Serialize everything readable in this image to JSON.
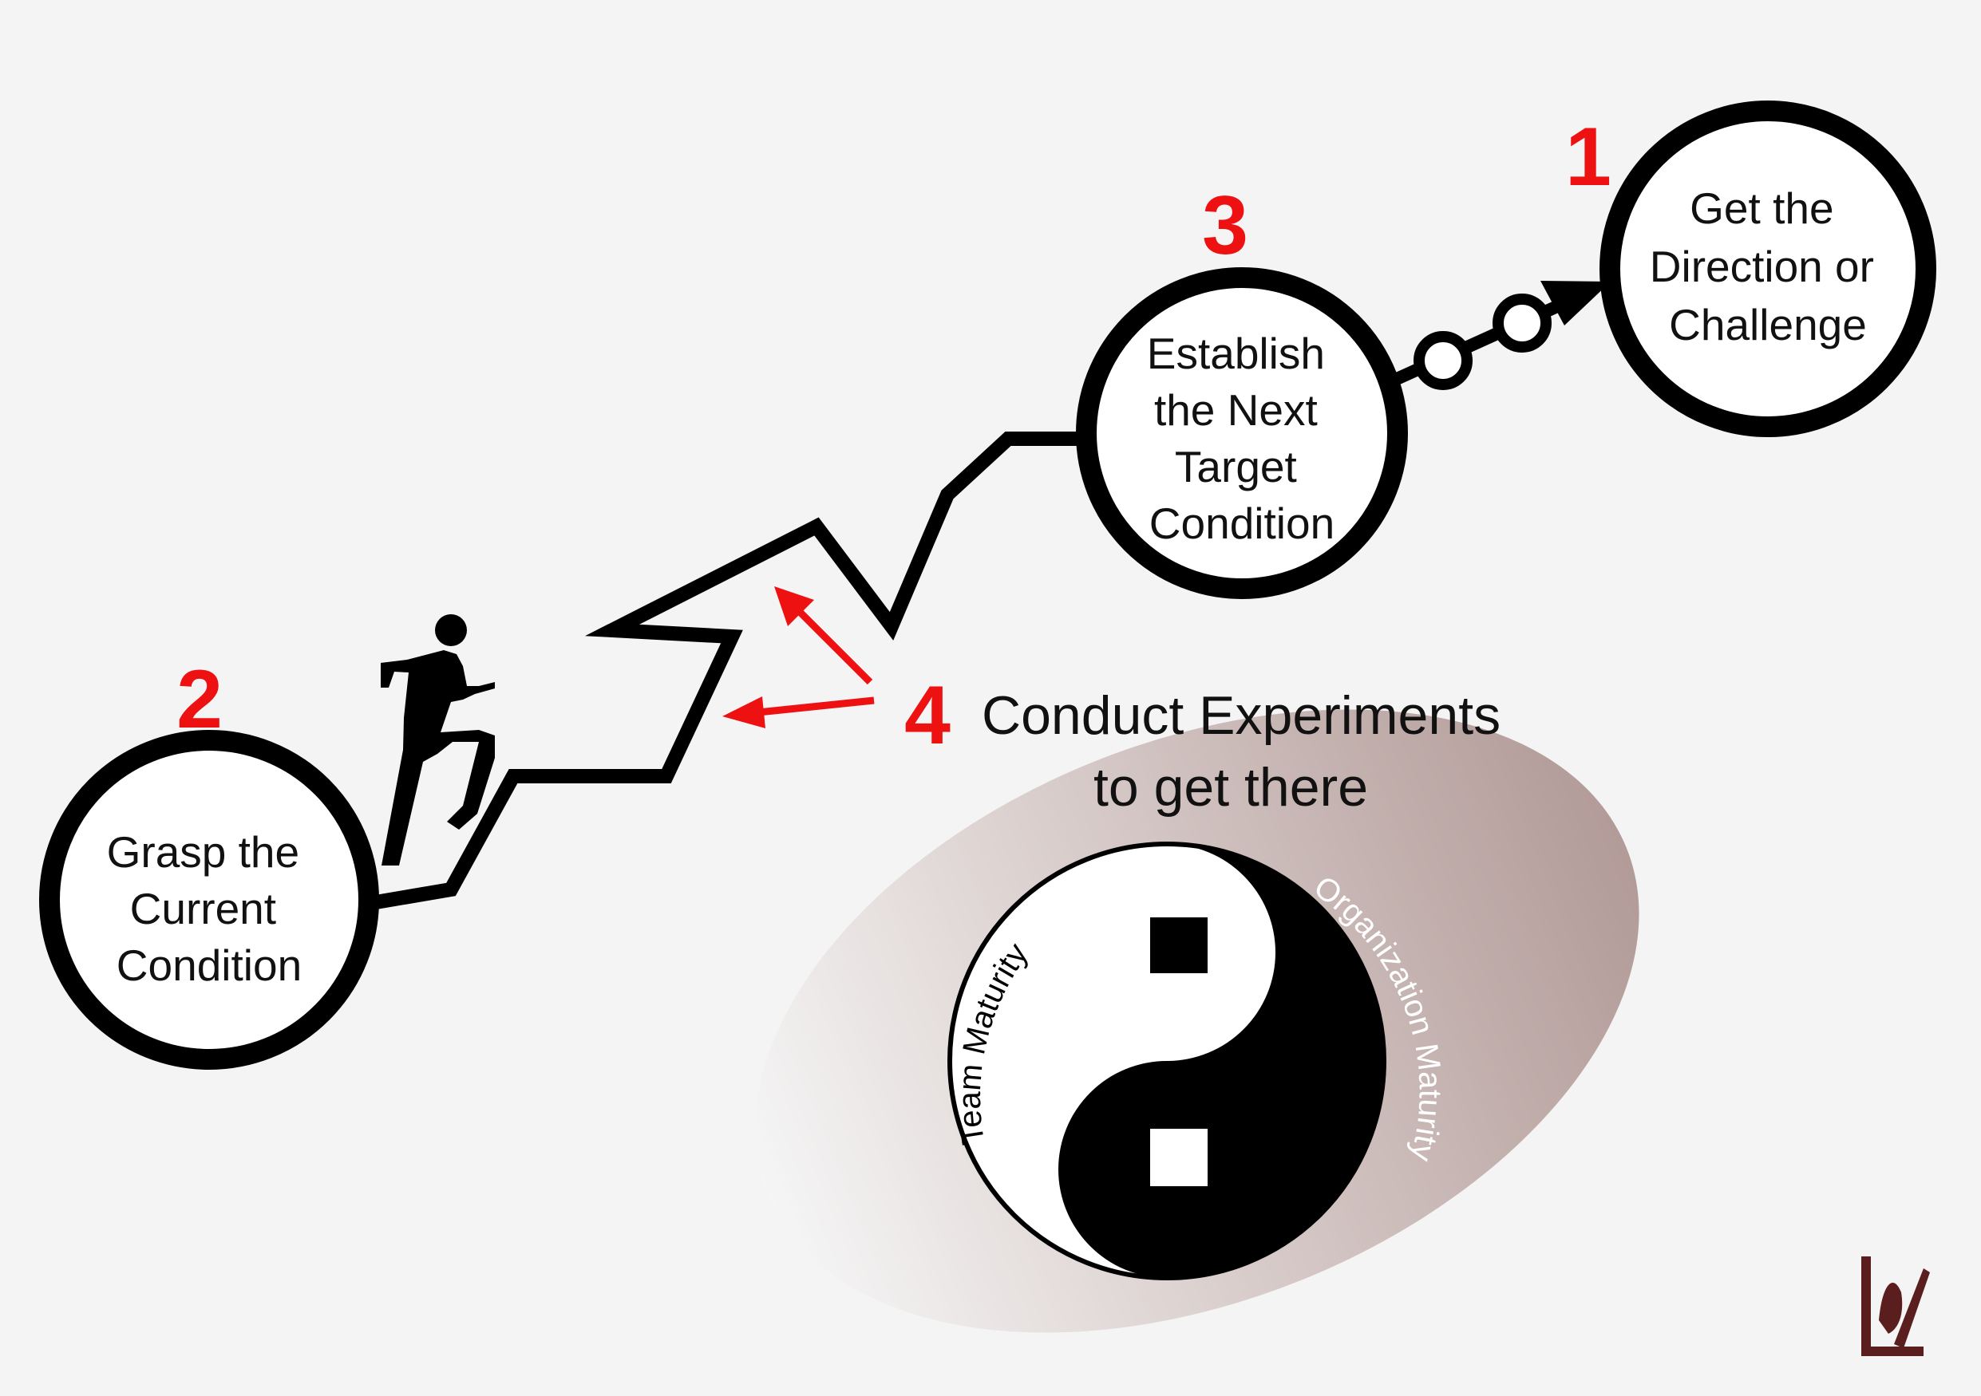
{
  "steps": [
    {
      "id": "grasp",
      "number": "2",
      "lines": [
        "Grasp the",
        "Current",
        "Condition"
      ]
    },
    {
      "id": "direction",
      "number": "1",
      "lines": [
        "Get the",
        "Direction or",
        "Challenge"
      ]
    },
    {
      "id": "target",
      "number": "3",
      "lines": [
        "Establish",
        "the Next",
        "Target",
        "Condition"
      ]
    }
  ],
  "experiments": {
    "number": "4",
    "line1": "Conduct Experiments",
    "line2": "to get there"
  },
  "yin_yang": {
    "left_label": "Team Maturity",
    "right_label": "Organization Maturity"
  },
  "colors": {
    "accent": "#ee1111",
    "outline": "#000000",
    "background": "#f4f4f4",
    "ellipse_dark": "#b29b98",
    "logo": "#5a1e1e"
  },
  "icons": [
    "walking-person-icon",
    "brand-logo-icon"
  ]
}
